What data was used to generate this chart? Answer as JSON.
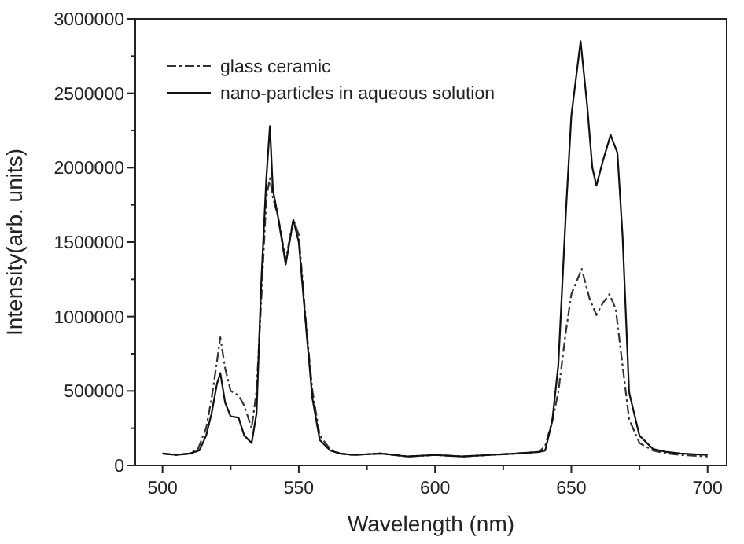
{
  "chart_data": {
    "type": "line",
    "xlabel": "Wavelength (nm)",
    "ylabel": "Intensity(arb. units)",
    "xlim": [
      490,
      707
    ],
    "ylim": [
      0,
      3000000
    ],
    "xticks": [
      500,
      {
        "value": 525,
        "label": null
      },
      550,
      {
        "value": 575,
        "label": null
      },
      600,
      {
        "value": 625,
        "label": null
      },
      650,
      {
        "value": 675,
        "label": null
      },
      700
    ],
    "yticks": [
      0,
      {
        "value": 250000,
        "label": null
      },
      500000,
      {
        "value": 750000,
        "label": null
      },
      1000000,
      {
        "value": 1250000,
        "label": null
      },
      1500000,
      {
        "value": 1750000,
        "label": null
      },
      2000000,
      {
        "value": 2250000,
        "label": null
      },
      2500000,
      {
        "value": 2750000,
        "label": null
      },
      3000000
    ],
    "legend": "top left",
    "grid": false,
    "series": [
      {
        "name": "glass ceramic",
        "color": "#333333",
        "line_style": "dashdot",
        "x": [
          500,
          505,
          510,
          513,
          516,
          518,
          520,
          521.2,
          523,
          525,
          527.9,
          530,
          532.7,
          534.5,
          536.2,
          538.1,
          539.4,
          540.5,
          542.3,
          545.2,
          548,
          550,
          552.9,
          555,
          557.7,
          561.5,
          565,
          570,
          580,
          590,
          600,
          610,
          620,
          630,
          638,
          640.4,
          643,
          645.2,
          648,
          650,
          653.8,
          656.7,
          659.2,
          661.5,
          664,
          666.3,
          668.8,
          671.2,
          675,
          680,
          685,
          690,
          700
        ],
        "values": [
          80000,
          70000,
          80000,
          110000,
          250000,
          450000,
          700000,
          860000,
          650000,
          500000,
          470000,
          400000,
          250000,
          500000,
          1100000,
          1800000,
          1930000,
          1800000,
          1680000,
          1380000,
          1650000,
          1550000,
          900000,
          500000,
          200000,
          110000,
          80000,
          70000,
          80000,
          60000,
          70000,
          60000,
          70000,
          80000,
          90000,
          130000,
          300000,
          490000,
          900000,
          1150000,
          1320000,
          1120000,
          1010000,
          1090000,
          1150000,
          1050000,
          670000,
          310000,
          150000,
          100000,
          80000,
          70000,
          60000
        ]
      },
      {
        "name": "nano-particles in aqueous solution",
        "color": "#111111",
        "line_style": "solid",
        "x": [
          500,
          505,
          510,
          513.5,
          516,
          518,
          520,
          521.2,
          523,
          525,
          527.9,
          530,
          532.7,
          534.5,
          536.2,
          538.1,
          539.4,
          540.5,
          542.3,
          545.2,
          548,
          550,
          552.9,
          555,
          557.7,
          561.5,
          565,
          570,
          580,
          590,
          600,
          610,
          620,
          630,
          638,
          640.4,
          643,
          645.2,
          648,
          650,
          653.4,
          655.8,
          657.7,
          659.2,
          661.5,
          664.4,
          666.9,
          668.8,
          671.2,
          675,
          680,
          685,
          690,
          700
        ],
        "values": [
          80000,
          70000,
          80000,
          100000,
          200000,
          350000,
          550000,
          620000,
          420000,
          330000,
          320000,
          200000,
          150000,
          350000,
          1220000,
          1930000,
          2280000,
          1850000,
          1680000,
          1350000,
          1650000,
          1500000,
          880000,
          450000,
          170000,
          100000,
          80000,
          70000,
          80000,
          60000,
          70000,
          60000,
          70000,
          80000,
          90000,
          100000,
          300000,
          670000,
          1700000,
          2350000,
          2850000,
          2420000,
          2000000,
          1880000,
          2040000,
          2220000,
          2100000,
          1540000,
          490000,
          200000,
          110000,
          90000,
          80000,
          70000
        ]
      }
    ]
  }
}
